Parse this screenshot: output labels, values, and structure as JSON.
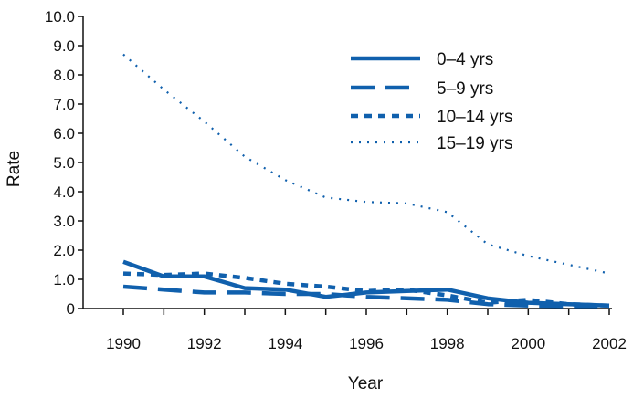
{
  "chart_data": {
    "type": "line",
    "title": "",
    "xlabel": "Year",
    "ylabel": "Rate",
    "xlim": [
      1990,
      2002
    ],
    "ylim": [
      0,
      10
    ],
    "x_ticks": [
      1990,
      1992,
      1994,
      1996,
      1998,
      2000,
      2002
    ],
    "x_tick_labels": [
      "1990",
      "1992",
      "1994",
      "1996",
      "1998",
      "2000",
      "2002"
    ],
    "y_ticks": [
      0,
      1,
      2,
      3,
      4,
      5,
      6,
      7,
      8,
      9,
      10
    ],
    "y_tick_labels": [
      "0",
      "1.0",
      "2.0",
      "3.0",
      "4.0",
      "5.0",
      "6.0",
      "7.0",
      "8.0",
      "9.0",
      "10.0"
    ],
    "grid": false,
    "legend_position": "top-right",
    "x": [
      1990,
      1991,
      1992,
      1993,
      1994,
      1995,
      1996,
      1997,
      1998,
      1999,
      2000,
      2001,
      2002
    ],
    "series": [
      {
        "name": "0–4 yrs",
        "style": "solid",
        "color": "#1060ad",
        "values": [
          1.6,
          1.1,
          1.1,
          0.7,
          0.65,
          0.4,
          0.55,
          0.6,
          0.65,
          0.35,
          0.2,
          0.15,
          0.1
        ]
      },
      {
        "name": "5–9 yrs",
        "style": "long-dash",
        "color": "#1060ad",
        "values": [
          0.75,
          0.65,
          0.55,
          0.55,
          0.5,
          0.5,
          0.4,
          0.35,
          0.3,
          0.15,
          0.1,
          0.08,
          0.08
        ]
      },
      {
        "name": "10–14 yrs",
        "style": "short-dash",
        "color": "#1060ad",
        "values": [
          1.2,
          1.15,
          1.2,
          1.05,
          0.85,
          0.75,
          0.6,
          0.65,
          0.45,
          0.2,
          0.3,
          0.15,
          0.1
        ]
      },
      {
        "name": "15–19 yrs",
        "style": "dotted",
        "color": "#1060ad",
        "values": [
          8.7,
          7.5,
          6.4,
          5.2,
          4.4,
          3.8,
          3.65,
          3.6,
          3.3,
          2.2,
          1.8,
          1.5,
          1.2
        ]
      }
    ]
  }
}
